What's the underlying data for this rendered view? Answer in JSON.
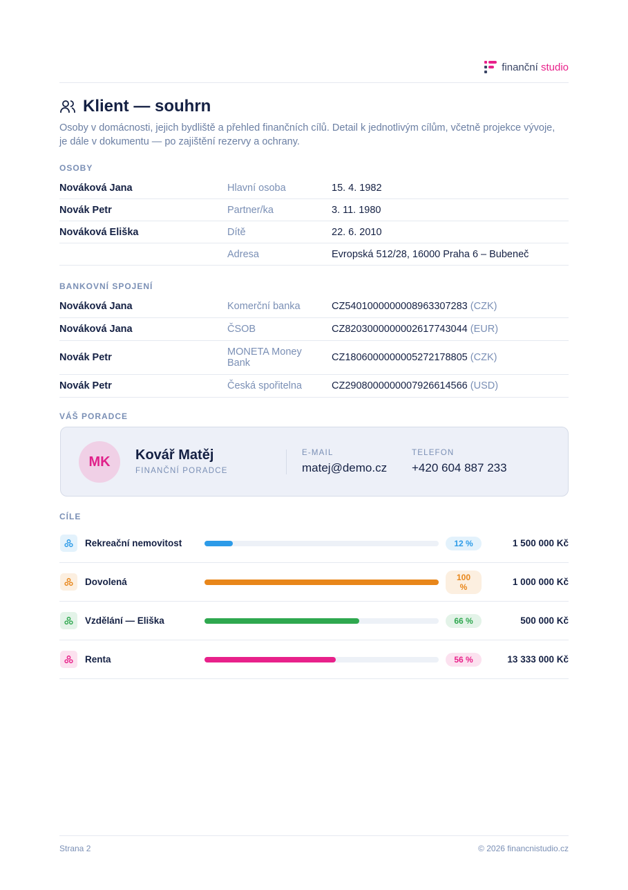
{
  "header": {
    "logo": {
      "part1": "finanční",
      "part2": "studio"
    }
  },
  "title": "Klient — souhrn",
  "description": "Osoby v domácnosti, jejich bydliště a přehled finančních cílů. Detail k jednotlivým cílům, včetně projekce vývoje, je dále v dokumentu — po zajištění rezervy a ochrany.",
  "persons": {
    "heading": "OSOBY",
    "rows": [
      {
        "name": "Nováková Jana",
        "role": "Hlavní osoba",
        "value": "15. 4. 1982"
      },
      {
        "name": "Novák Petr",
        "role": "Partner/ka",
        "value": "3. 11. 1980"
      },
      {
        "name": "Nováková Eliška",
        "role": "Dítě",
        "value": "22. 6. 2010"
      },
      {
        "role": "Adresa",
        "value": "Evropská 512/28, 16000 Praha 6 – Bubeneč"
      }
    ]
  },
  "bank": {
    "heading": "BANKOVNÍ SPOJENÍ",
    "rows": [
      {
        "name": "Nováková Jana",
        "bank": "Komerční banka",
        "iban": "CZ5401000000008963307283",
        "currency": "(CZK)"
      },
      {
        "name": "Nováková Jana",
        "bank": "ČSOB",
        "iban": "CZ8203000000002617743044",
        "currency": "(EUR)"
      },
      {
        "name": "Novák Petr",
        "bank": "MONETA Money Bank",
        "iban": "CZ1806000000005272178805",
        "currency": "(CZK)"
      },
      {
        "name": "Novák Petr",
        "bank": "Česká spořitelna",
        "iban": "CZ2908000000007926614566",
        "currency": "(USD)"
      }
    ]
  },
  "advisor": {
    "heading": "VÁŠ PORADCE",
    "initials": "MK",
    "name": "Kovář Matěj",
    "role": "FINANČNÍ PORADCE",
    "email_label": "E-MAIL",
    "email": "matej@demo.cz",
    "phone_label": "TELEFON",
    "phone": "+420 604 887 233"
  },
  "goals": {
    "heading": "CÍLE",
    "items": [
      {
        "name": "Rekreační nemovitost",
        "percent": 12,
        "percent_label": "12 %",
        "amount": "1 500 000 Kč",
        "color": "#2d9be8"
      },
      {
        "name": "Dovolená",
        "percent": 100,
        "percent_label": "100 %",
        "amount": "1 000 000 Kč",
        "color": "#e8861a"
      },
      {
        "name": "Vzdělání — Eliška",
        "percent": 66,
        "percent_label": "66 %",
        "amount": "500 000 Kč",
        "color": "#2fa84f"
      },
      {
        "name": "Renta",
        "percent": 56,
        "percent_label": "56 %",
        "amount": "13 333 000 Kč",
        "color": "#e8218a"
      }
    ]
  },
  "footer": {
    "page": "Strana 2",
    "copyright": "© 2026 financnistudio.cz"
  }
}
